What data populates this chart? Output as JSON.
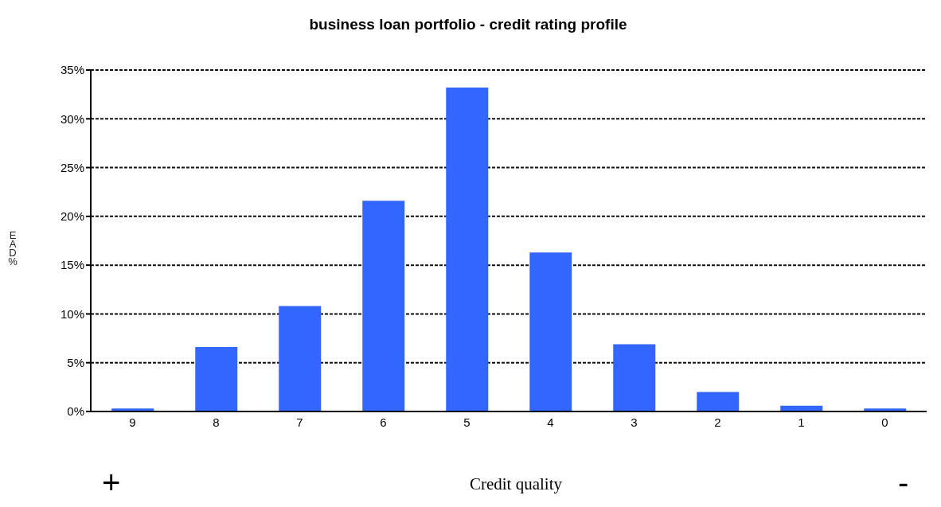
{
  "chart_data": {
    "type": "bar",
    "title": "business loan portfolio - credit rating profile",
    "xlabel": "Credit quality",
    "ylabel": "EAD %",
    "categories": [
      "9",
      "8",
      "7",
      "6",
      "5",
      "4",
      "3",
      "2",
      "1",
      "0"
    ],
    "values": [
      0.3,
      6.6,
      10.8,
      21.6,
      33.2,
      16.3,
      6.9,
      2.0,
      0.6,
      0.3
    ],
    "color": "#3366ff",
    "ylim": [
      0,
      35
    ],
    "yticks": [
      {
        "value": 0,
        "label": "0%"
      },
      {
        "value": 5,
        "label": "5%"
      },
      {
        "value": 10,
        "label": "10%"
      },
      {
        "value": 15,
        "label": "15%"
      },
      {
        "value": 20,
        "label": "20%"
      },
      {
        "value": 25,
        "label": "25%"
      },
      {
        "value": 30,
        "label": "30%"
      },
      {
        "value": 35,
        "label": "35%"
      }
    ],
    "grid": "y",
    "line_style": "dashed",
    "annotations": [
      "+",
      "-"
    ]
  }
}
